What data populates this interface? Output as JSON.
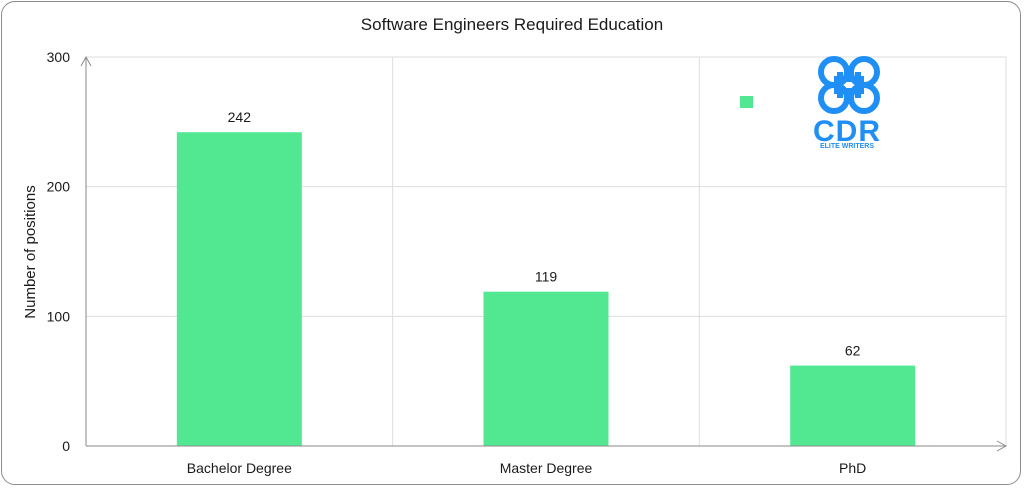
{
  "chart_data": {
    "type": "bar",
    "title": "Software Engineers Required Education",
    "xlabel": "",
    "ylabel": "Number of positions",
    "categories": [
      "Bachelor Degree",
      "Master Degree",
      "PhD"
    ],
    "values": [
      242,
      119,
      62
    ],
    "ylim": [
      0,
      300
    ],
    "yticks": [
      0,
      100,
      200,
      300
    ],
    "grid": true,
    "bar_color": "#52e891",
    "legend": {
      "placement": "top-right",
      "entries": [
        ""
      ]
    }
  },
  "logo": {
    "text": "CDR",
    "tagline": "ELITE WRITERS",
    "color": "#1f8ff5"
  }
}
